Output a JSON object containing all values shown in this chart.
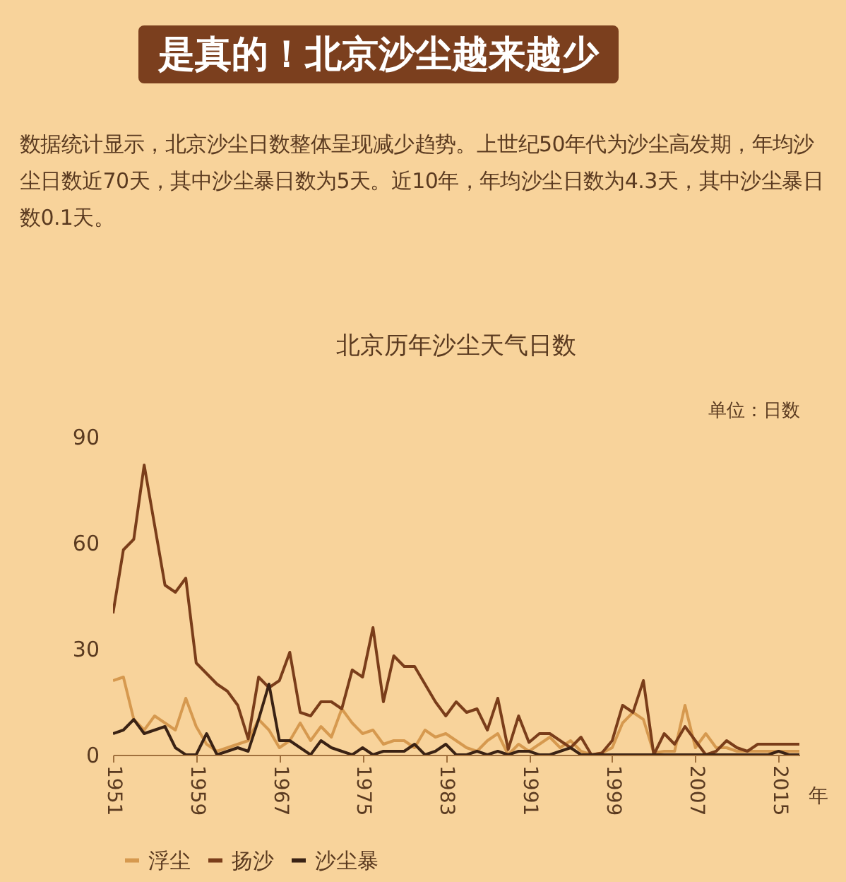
{
  "chart_data": {
    "type": "line",
    "title": "是真的！北京沙尘越来越少",
    "subtitle": "数据统计显示，北京沙尘日数整体呈现减少趋势。上世纪50年代为沙尘高发期，年均沙尘日数近70天，其中沙尘暴日数为5天。近10年，年均沙尘日数为4.3天，其中沙尘暴日数0.1天。",
    "annotations": [
      "北京历年沙尘天气日数"
    ],
    "ylabel": "单位：日数",
    "xlabel": "年",
    "x": [
      1951,
      1952,
      1953,
      1954,
      1955,
      1956,
      1957,
      1958,
      1959,
      1960,
      1961,
      1962,
      1963,
      1964,
      1965,
      1966,
      1967,
      1968,
      1969,
      1970,
      1971,
      1972,
      1973,
      1974,
      1975,
      1976,
      1977,
      1978,
      1979,
      1980,
      1981,
      1982,
      1983,
      1984,
      1985,
      1986,
      1987,
      1988,
      1989,
      1990,
      1991,
      1992,
      1993,
      1994,
      1995,
      1996,
      1997,
      1998,
      1999,
      2000,
      2001,
      2002,
      2003,
      2004,
      2005,
      2006,
      2007,
      2008,
      2009,
      2010,
      2011,
      2012,
      2013,
      2014,
      2015,
      2016,
      2017
    ],
    "series": [
      {
        "name": "浮尘",
        "color": "#d6994f",
        "values": [
          21,
          22,
          10,
          7,
          11,
          9,
          7,
          16,
          8,
          3,
          1,
          2,
          3,
          4,
          10,
          7,
          2,
          4,
          9,
          4,
          8,
          5,
          13,
          9,
          6,
          7,
          3,
          4,
          4,
          2,
          7,
          5,
          6,
          4,
          2,
          1,
          4,
          6,
          0,
          3,
          1,
          3,
          5,
          2,
          4,
          1,
          0,
          0.5,
          2,
          9,
          12,
          10,
          0.5,
          1,
          1,
          14,
          2,
          6,
          2,
          2,
          1,
          1,
          1,
          1,
          1,
          1,
          1
        ]
      },
      {
        "name": "扬沙",
        "color": "#7a3d1a",
        "values": [
          40,
          58,
          61,
          82,
          65,
          48,
          46,
          50,
          26,
          23,
          20,
          18,
          14,
          4.5,
          22,
          19,
          21,
          29,
          12,
          11,
          15,
          15,
          13,
          24,
          22,
          36,
          15,
          28,
          25,
          25,
          20,
          15,
          11,
          15,
          12,
          13,
          7,
          16,
          1.5,
          11,
          3.5,
          6,
          6,
          4,
          2,
          5,
          0,
          0.5,
          4,
          14,
          12,
          21,
          0,
          6,
          3,
          8,
          4,
          0,
          1,
          4,
          2,
          1,
          3,
          3,
          3,
          3,
          3
        ]
      },
      {
        "name": "沙尘暴",
        "color": "#3a2214",
        "values": [
          6,
          7,
          10,
          6,
          7,
          8,
          2,
          0,
          0,
          6,
          0,
          1,
          2,
          1,
          10,
          20,
          4,
          4,
          2,
          0,
          4,
          2,
          1,
          0,
          2,
          0,
          1,
          1,
          1,
          3,
          0,
          1,
          3,
          0,
          0,
          1,
          0,
          1,
          0,
          1,
          1,
          0,
          0,
          1,
          2,
          0,
          0,
          0,
          0,
          0,
          0,
          0,
          0,
          0,
          0,
          0,
          0,
          0,
          0,
          0,
          0,
          0,
          0,
          0,
          1,
          0,
          0
        ]
      }
    ],
    "ylim": [
      0,
      90
    ],
    "yticks": [
      0,
      30,
      60,
      90
    ],
    "xlim": [
      1951,
      2017
    ],
    "xticks": [
      1951,
      1959,
      1967,
      1975,
      1983,
      1991,
      1999,
      2007,
      2015
    ],
    "grid": false,
    "legend": "bottom",
    "marker": "none",
    "line_style": "solid"
  }
}
